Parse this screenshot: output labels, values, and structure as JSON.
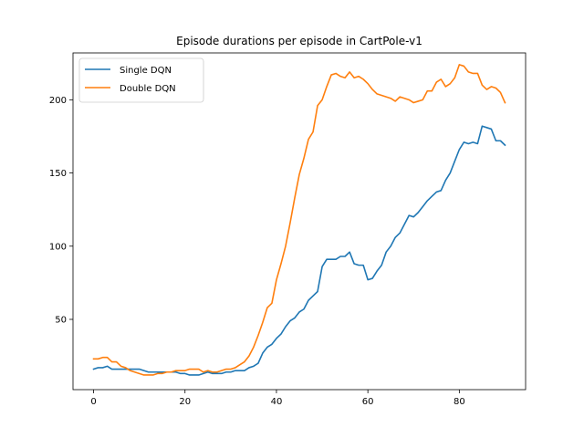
{
  "chart_data": {
    "type": "line",
    "title": "Episode durations per episode in CartPole-v1",
    "xlabel": "",
    "ylabel": "",
    "xlim": [
      -4.5,
      94.5
    ],
    "ylim": [
      2,
      232
    ],
    "xticks": [
      0,
      20,
      40,
      60,
      80
    ],
    "yticks": [
      50,
      100,
      150,
      200
    ],
    "grid": false,
    "legend_position": "top-left",
    "series": [
      {
        "name": "Single DQN",
        "color": "#1f77b4",
        "values": [
          16,
          17,
          17,
          18,
          16,
          16,
          16,
          16,
          16,
          16,
          16,
          15,
          14,
          14,
          14,
          14,
          14,
          14,
          14,
          13,
          13,
          12,
          12,
          12,
          13,
          14,
          13,
          13,
          13,
          14,
          14,
          15,
          15,
          15,
          17,
          18,
          20,
          27,
          31,
          33,
          37,
          40,
          45,
          49,
          51,
          55,
          57,
          63,
          66,
          69,
          86,
          91,
          91,
          91,
          93,
          93,
          96,
          88,
          87,
          87,
          77,
          78,
          83,
          87,
          96,
          100,
          106,
          109,
          115,
          121,
          120,
          123,
          127,
          131,
          134,
          137,
          138,
          145,
          150,
          158,
          166,
          171,
          170,
          171,
          170,
          182,
          181,
          180,
          172,
          172,
          169
        ]
      },
      {
        "name": "Double DQN",
        "color": "#ff7f0e",
        "values": [
          23,
          23,
          24,
          24,
          21,
          21,
          18,
          17,
          15,
          14,
          13,
          12,
          12,
          12,
          13,
          13,
          14,
          14,
          15,
          15,
          15,
          16,
          16,
          16,
          14,
          15,
          14,
          14,
          15,
          16,
          16,
          17,
          19,
          21,
          25,
          31,
          39,
          48,
          58,
          61,
          77,
          88,
          100,
          116,
          133,
          149,
          160,
          173,
          178,
          196,
          200,
          209,
          217,
          218,
          216,
          215,
          219,
          215,
          216,
          214,
          211,
          207,
          204,
          203,
          202,
          201,
          199,
          202,
          201,
          200,
          198,
          199,
          200,
          206,
          206,
          212,
          214,
          209,
          211,
          215,
          224,
          223,
          219,
          218,
          218,
          210,
          207,
          209,
          208,
          205,
          198
        ]
      }
    ]
  }
}
